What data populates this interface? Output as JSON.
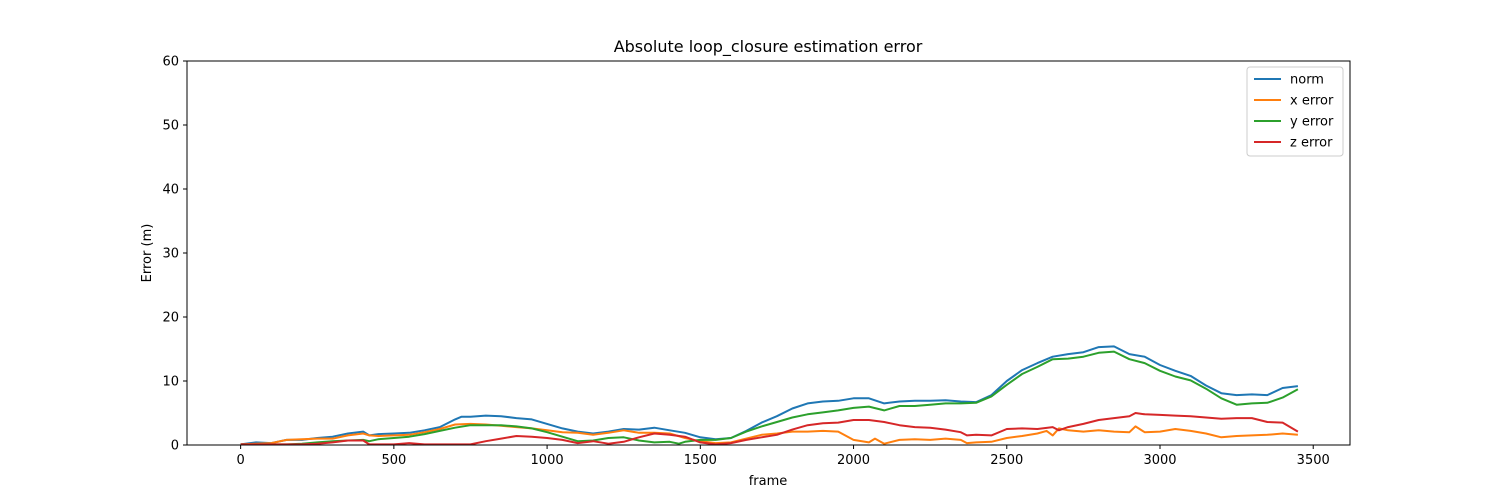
{
  "chart_data": {
    "type": "line",
    "title": "Absolute loop_closure estimation error",
    "xlabel": "frame",
    "ylabel": "Error (m)",
    "xlim": [
      -175,
      3620
    ],
    "ylim": [
      0,
      60
    ],
    "xticks": [
      0,
      500,
      1000,
      1500,
      2000,
      2500,
      3000,
      3500
    ],
    "yticks": [
      0,
      10,
      20,
      30,
      40,
      50,
      60
    ],
    "grid": false,
    "legend_position": "top-right",
    "series": [
      {
        "name": "norm",
        "color": "#1f77b4",
        "points": [
          [
            0,
            0.1
          ],
          [
            50,
            0.4
          ],
          [
            100,
            0.3
          ],
          [
            150,
            0.8
          ],
          [
            200,
            0.8
          ],
          [
            250,
            1.1
          ],
          [
            300,
            1.3
          ],
          [
            350,
            1.8
          ],
          [
            400,
            2.1
          ],
          [
            420,
            1.5
          ],
          [
            450,
            1.7
          ],
          [
            500,
            1.8
          ],
          [
            550,
            1.9
          ],
          [
            600,
            2.3
          ],
          [
            650,
            2.8
          ],
          [
            700,
            4.0
          ],
          [
            720,
            4.4
          ],
          [
            750,
            4.4
          ],
          [
            800,
            4.6
          ],
          [
            850,
            4.5
          ],
          [
            900,
            4.2
          ],
          [
            950,
            4.0
          ],
          [
            1000,
            3.3
          ],
          [
            1050,
            2.6
          ],
          [
            1100,
            2.1
          ],
          [
            1150,
            1.8
          ],
          [
            1200,
            2.1
          ],
          [
            1250,
            2.5
          ],
          [
            1300,
            2.4
          ],
          [
            1350,
            2.7
          ],
          [
            1400,
            2.3
          ],
          [
            1450,
            1.9
          ],
          [
            1500,
            1.2
          ],
          [
            1550,
            0.9
          ],
          [
            1600,
            1.1
          ],
          [
            1650,
            2.2
          ],
          [
            1700,
            3.5
          ],
          [
            1750,
            4.5
          ],
          [
            1800,
            5.7
          ],
          [
            1850,
            6.5
          ],
          [
            1900,
            6.8
          ],
          [
            1950,
            6.9
          ],
          [
            2000,
            7.3
          ],
          [
            2050,
            7.3
          ],
          [
            2100,
            6.5
          ],
          [
            2150,
            6.8
          ],
          [
            2200,
            6.9
          ],
          [
            2250,
            6.9
          ],
          [
            2300,
            7.0
          ],
          [
            2350,
            6.8
          ],
          [
            2400,
            6.7
          ],
          [
            2450,
            7.8
          ],
          [
            2500,
            10.0
          ],
          [
            2550,
            11.7
          ],
          [
            2600,
            12.8
          ],
          [
            2650,
            13.8
          ],
          [
            2700,
            14.2
          ],
          [
            2750,
            14.5
          ],
          [
            2800,
            15.3
          ],
          [
            2850,
            15.4
          ],
          [
            2900,
            14.2
          ],
          [
            2950,
            13.8
          ],
          [
            3000,
            12.5
          ],
          [
            3050,
            11.6
          ],
          [
            3100,
            10.8
          ],
          [
            3150,
            9.3
          ],
          [
            3200,
            8.1
          ],
          [
            3250,
            7.8
          ],
          [
            3300,
            7.9
          ],
          [
            3350,
            7.8
          ],
          [
            3400,
            8.9
          ],
          [
            3450,
            9.2
          ]
        ]
      },
      {
        "name": "x error",
        "color": "#ff7f0e",
        "points": [
          [
            0,
            0.1
          ],
          [
            50,
            0.2
          ],
          [
            100,
            0.3
          ],
          [
            150,
            0.8
          ],
          [
            200,
            0.9
          ],
          [
            250,
            1.0
          ],
          [
            300,
            1.0
          ],
          [
            350,
            1.5
          ],
          [
            400,
            1.8
          ],
          [
            420,
            1.5
          ],
          [
            450,
            1.4
          ],
          [
            500,
            1.5
          ],
          [
            550,
            1.6
          ],
          [
            600,
            2.0
          ],
          [
            650,
            2.5
          ],
          [
            700,
            3.2
          ],
          [
            750,
            3.3
          ],
          [
            800,
            3.2
          ],
          [
            850,
            3.0
          ],
          [
            900,
            2.8
          ],
          [
            950,
            2.6
          ],
          [
            1000,
            2.3
          ],
          [
            1050,
            2.0
          ],
          [
            1100,
            1.9
          ],
          [
            1150,
            1.6
          ],
          [
            1200,
            1.9
          ],
          [
            1250,
            2.3
          ],
          [
            1300,
            1.9
          ],
          [
            1350,
            1.9
          ],
          [
            1400,
            1.8
          ],
          [
            1450,
            1.1
          ],
          [
            1500,
            0.6
          ],
          [
            1550,
            0.3
          ],
          [
            1600,
            0.4
          ],
          [
            1650,
            1.0
          ],
          [
            1700,
            1.6
          ],
          [
            1750,
            1.8
          ],
          [
            1800,
            2.1
          ],
          [
            1850,
            2.1
          ],
          [
            1900,
            2.2
          ],
          [
            1950,
            2.1
          ],
          [
            2000,
            0.8
          ],
          [
            2050,
            0.4
          ],
          [
            2070,
            1.0
          ],
          [
            2100,
            0.2
          ],
          [
            2150,
            0.8
          ],
          [
            2200,
            0.9
          ],
          [
            2250,
            0.8
          ],
          [
            2300,
            1.0
          ],
          [
            2350,
            0.8
          ],
          [
            2370,
            0.3
          ],
          [
            2400,
            0.4
          ],
          [
            2450,
            0.5
          ],
          [
            2500,
            1.1
          ],
          [
            2550,
            1.4
          ],
          [
            2600,
            1.8
          ],
          [
            2630,
            2.2
          ],
          [
            2650,
            1.5
          ],
          [
            2670,
            2.6
          ],
          [
            2700,
            2.3
          ],
          [
            2750,
            2.1
          ],
          [
            2800,
            2.3
          ],
          [
            2850,
            2.1
          ],
          [
            2900,
            2.0
          ],
          [
            2920,
            2.9
          ],
          [
            2950,
            2.0
          ],
          [
            3000,
            2.1
          ],
          [
            3050,
            2.5
          ],
          [
            3100,
            2.2
          ],
          [
            3150,
            1.8
          ],
          [
            3200,
            1.2
          ],
          [
            3250,
            1.4
          ],
          [
            3300,
            1.5
          ],
          [
            3350,
            1.6
          ],
          [
            3400,
            1.8
          ],
          [
            3450,
            1.6
          ]
        ]
      },
      {
        "name": "y error",
        "color": "#2ca02c",
        "points": [
          [
            0,
            0.1
          ],
          [
            50,
            0.1
          ],
          [
            100,
            0.1
          ],
          [
            150,
            0.1
          ],
          [
            200,
            0.2
          ],
          [
            250,
            0.4
          ],
          [
            300,
            0.6
          ],
          [
            350,
            0.7
          ],
          [
            400,
            0.8
          ],
          [
            420,
            0.6
          ],
          [
            450,
            0.9
          ],
          [
            500,
            1.1
          ],
          [
            550,
            1.3
          ],
          [
            600,
            1.7
          ],
          [
            650,
            2.2
          ],
          [
            700,
            2.7
          ],
          [
            750,
            3.1
          ],
          [
            800,
            3.1
          ],
          [
            850,
            3.1
          ],
          [
            900,
            2.9
          ],
          [
            950,
            2.6
          ],
          [
            1000,
            2.0
          ],
          [
            1050,
            1.3
          ],
          [
            1100,
            0.6
          ],
          [
            1150,
            0.7
          ],
          [
            1200,
            1.1
          ],
          [
            1250,
            1.2
          ],
          [
            1300,
            0.7
          ],
          [
            1350,
            0.4
          ],
          [
            1400,
            0.5
          ],
          [
            1430,
            0.2
          ],
          [
            1450,
            0.5
          ],
          [
            1500,
            0.8
          ],
          [
            1550,
            0.8
          ],
          [
            1600,
            1.1
          ],
          [
            1650,
            2.1
          ],
          [
            1700,
            2.9
          ],
          [
            1750,
            3.6
          ],
          [
            1800,
            4.3
          ],
          [
            1850,
            4.8
          ],
          [
            1900,
            5.1
          ],
          [
            1950,
            5.4
          ],
          [
            2000,
            5.8
          ],
          [
            2050,
            6.0
          ],
          [
            2100,
            5.4
          ],
          [
            2150,
            6.1
          ],
          [
            2200,
            6.1
          ],
          [
            2250,
            6.3
          ],
          [
            2300,
            6.5
          ],
          [
            2350,
            6.5
          ],
          [
            2400,
            6.6
          ],
          [
            2450,
            7.6
          ],
          [
            2500,
            9.4
          ],
          [
            2550,
            11.1
          ],
          [
            2600,
            12.2
          ],
          [
            2650,
            13.4
          ],
          [
            2700,
            13.5
          ],
          [
            2750,
            13.8
          ],
          [
            2800,
            14.4
          ],
          [
            2850,
            14.6
          ],
          [
            2900,
            13.4
          ],
          [
            2950,
            12.8
          ],
          [
            3000,
            11.6
          ],
          [
            3050,
            10.7
          ],
          [
            3100,
            10.1
          ],
          [
            3150,
            8.8
          ],
          [
            3200,
            7.3
          ],
          [
            3250,
            6.3
          ],
          [
            3300,
            6.5
          ],
          [
            3350,
            6.6
          ],
          [
            3400,
            7.4
          ],
          [
            3450,
            8.7
          ]
        ]
      },
      {
        "name": "z error",
        "color": "#d62728",
        "points": [
          [
            0,
            0.1
          ],
          [
            50,
            0.1
          ],
          [
            100,
            0.1
          ],
          [
            150,
            0.1
          ],
          [
            200,
            0.1
          ],
          [
            250,
            0.2
          ],
          [
            300,
            0.4
          ],
          [
            350,
            0.7
          ],
          [
            400,
            0.7
          ],
          [
            420,
            0.1
          ],
          [
            450,
            0.1
          ],
          [
            500,
            0.1
          ],
          [
            550,
            0.3
          ],
          [
            600,
            0.1
          ],
          [
            650,
            0.1
          ],
          [
            700,
            0.1
          ],
          [
            750,
            0.1
          ],
          [
            800,
            0.6
          ],
          [
            850,
            1.0
          ],
          [
            900,
            1.4
          ],
          [
            950,
            1.3
          ],
          [
            1000,
            1.1
          ],
          [
            1050,
            0.8
          ],
          [
            1100,
            0.3
          ],
          [
            1150,
            0.6
          ],
          [
            1200,
            0.2
          ],
          [
            1250,
            0.5
          ],
          [
            1300,
            1.2
          ],
          [
            1350,
            1.8
          ],
          [
            1400,
            1.6
          ],
          [
            1450,
            1.3
          ],
          [
            1500,
            0.4
          ],
          [
            1550,
            0.1
          ],
          [
            1600,
            0.3
          ],
          [
            1650,
            0.8
          ],
          [
            1700,
            1.2
          ],
          [
            1750,
            1.6
          ],
          [
            1800,
            2.4
          ],
          [
            1850,
            3.1
          ],
          [
            1900,
            3.4
          ],
          [
            1950,
            3.5
          ],
          [
            2000,
            3.9
          ],
          [
            2050,
            3.9
          ],
          [
            2100,
            3.6
          ],
          [
            2150,
            3.1
          ],
          [
            2200,
            2.8
          ],
          [
            2250,
            2.7
          ],
          [
            2300,
            2.4
          ],
          [
            2350,
            2.0
          ],
          [
            2370,
            1.5
          ],
          [
            2400,
            1.6
          ],
          [
            2450,
            1.5
          ],
          [
            2500,
            2.5
          ],
          [
            2550,
            2.6
          ],
          [
            2600,
            2.5
          ],
          [
            2650,
            2.8
          ],
          [
            2670,
            2.3
          ],
          [
            2700,
            2.8
          ],
          [
            2750,
            3.3
          ],
          [
            2800,
            3.9
          ],
          [
            2850,
            4.2
          ],
          [
            2900,
            4.5
          ],
          [
            2920,
            5.0
          ],
          [
            2950,
            4.8
          ],
          [
            3000,
            4.7
          ],
          [
            3050,
            4.6
          ],
          [
            3100,
            4.5
          ],
          [
            3150,
            4.3
          ],
          [
            3200,
            4.1
          ],
          [
            3250,
            4.2
          ],
          [
            3300,
            4.2
          ],
          [
            3350,
            3.6
          ],
          [
            3400,
            3.5
          ],
          [
            3450,
            2.1
          ]
        ]
      }
    ]
  }
}
